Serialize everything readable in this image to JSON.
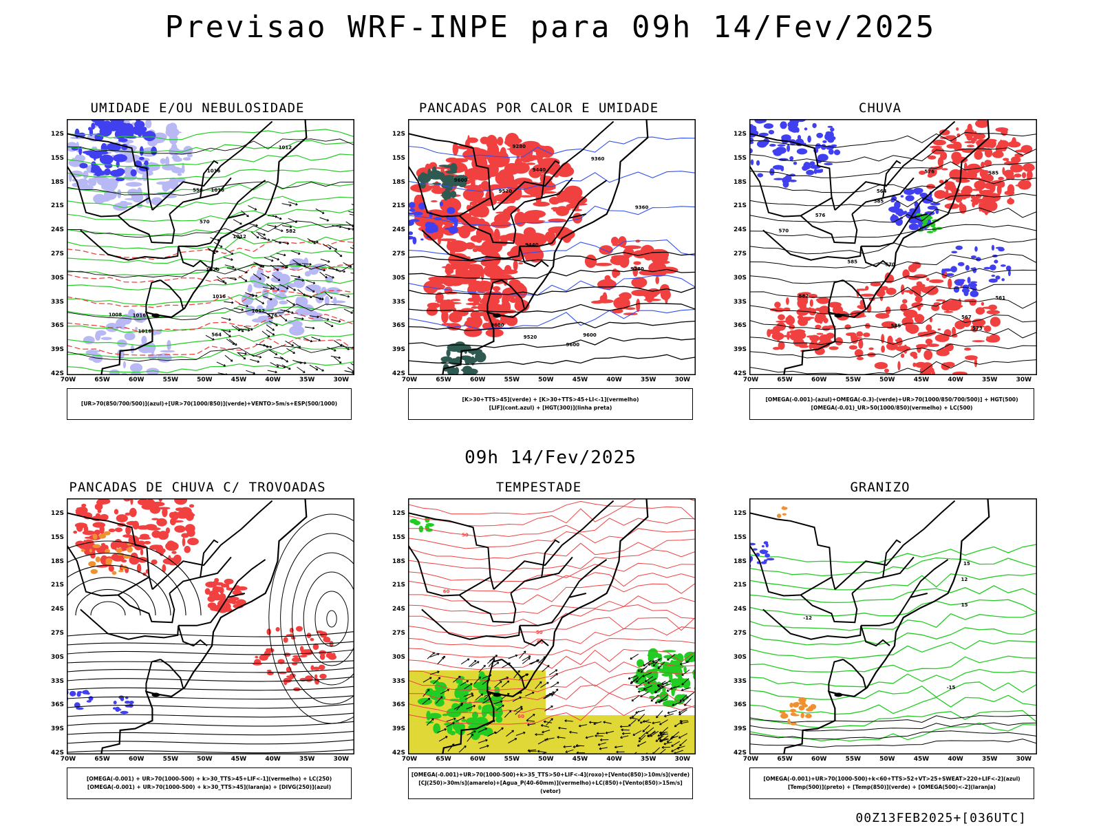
{
  "title": "Previsao WRF-INPE  para 09h 14/Fev/2025",
  "mid_time": "09h 14/Fev/2025",
  "footer": "00Z13FEB2025+[036UTC]",
  "axes": {
    "lat_labels": [
      "12S",
      "15S",
      "18S",
      "21S",
      "24S",
      "27S",
      "30S",
      "33S",
      "36S",
      "39S",
      "42S"
    ],
    "lon_labels": [
      "70W",
      "65W",
      "60W",
      "55W",
      "50W",
      "45W",
      "40W",
      "35W",
      "30W"
    ]
  },
  "colors": {
    "blue": "#4040f0",
    "lightblue": "#b8b8f4",
    "green": "#22cc22",
    "red": "#f04040",
    "darkgreen": "#2f5a52",
    "yellow": "#e0d836",
    "orange": "#f09030",
    "black": "#000000"
  },
  "panels": [
    {
      "id": "umidade",
      "title": "UMIDADE E/OU NEBULOSIDADE",
      "legend": [
        "[UR>70(850/700/500)](azul)+[UR>70(1000/850)](verde)+VENTO>5m/s+ESP(500/1000)"
      ],
      "contour_labels": [
        "1012",
        "1016",
        "1016",
        "1020",
        "1016",
        "1012",
        "1016",
        "1016",
        "1012",
        "1008",
        "570",
        "558",
        "564",
        "576",
        "582"
      ]
    },
    {
      "id": "pancadas_calor",
      "title": "PANCADAS POR CALOR E UMIDADE",
      "legend": [
        "[K>30+TTS>45](verde) + [K>30+TTS>45+LI<-1](vermelho)",
        "[LIF](cont.azul) + [HGT(300)](linha preta)"
      ],
      "contour_labels": [
        "9600",
        "9600",
        "9600",
        "9600",
        "9520",
        "9520",
        "9440",
        "9440",
        "9360",
        "9360",
        "9280",
        "9280"
      ]
    },
    {
      "id": "chuva",
      "title": "CHUVA",
      "legend": [
        "[OMEGA(-0.001)-(azul)+OMEGA(-0.3)-(verde)+UR>70(1000/850/700/500)] + HGT(500)",
        "[OMEGA(-0.01)_UR>50(1000/850)(vermelho) + LC(500)"
      ],
      "contour_labels": [
        "585",
        "585",
        "585",
        "585",
        "582",
        "576",
        "573",
        "570",
        "567",
        "564",
        "561",
        "576",
        "570"
      ]
    },
    {
      "id": "pancadas_trovoadas",
      "title": "PANCADAS DE CHUVA C/ TROVOADAS",
      "legend": [
        "[OMEGA(-0.001) + UR>70(1000-500) + k>30_TTS>45+LIF<-1](vermelho) + LC(250)",
        "[OMEGA(-0.001) + UR>70(1000-500) + k>30_TTS>45](laranja) + [DIVG(250)](azul)"
      ],
      "contour_labels": []
    },
    {
      "id": "tempestade",
      "title": "TEMPESTADE",
      "legend": [
        "[OMEGA(-0.001)+UR>70(1000-500)+k>35_TTS>50+LIF<-4](roxo)+[Vento(850)>10m/s](verde)",
        "[CJ(250)>30m/s](amarelo)+[Agua_P(40-60mm)](vermelho)+LC(850)+[Vento(850)>15m/s](vetor)"
      ],
      "contour_labels": [
        "60",
        "50",
        "60",
        "50",
        "60"
      ]
    },
    {
      "id": "granizo",
      "title": "GRANIZO",
      "legend": [
        "[OMEGA(-0.001)+UR>70(1000-500)+k<60+TTS>52+VT>25+SWEAT>220+LIF<-2](azul)",
        "[Temp(500)](preto) + [Temp(850)](verde) + [OMEGA(500)<-2](laranja)"
      ],
      "contour_labels": [
        "12",
        "15",
        "-12",
        "-15",
        "15"
      ]
    }
  ]
}
